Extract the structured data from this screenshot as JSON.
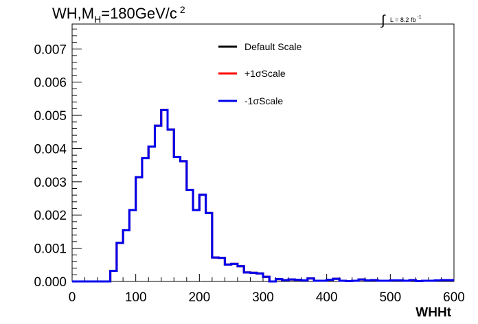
{
  "chart_data": {
    "type": "line",
    "title_main": "WH,M",
    "title_sub": "H",
    "title_rest": "=180GeV/c",
    "title_sup": "2",
    "lumi_label": "L = 8.2 fb",
    "lumi_sup": "-1",
    "xlabel": "WHHt",
    "ylabel": "",
    "xlim": [
      0,
      600
    ],
    "ylim": [
      0,
      0.00775
    ],
    "x_ticks": [
      "0",
      "100",
      "200",
      "300",
      "400",
      "500",
      "600"
    ],
    "x_tick_values": [
      0,
      100,
      200,
      300,
      400,
      500,
      600
    ],
    "y_ticks": [
      "0.000",
      "0.001",
      "0.002",
      "0.003",
      "0.004",
      "0.005",
      "0.006",
      "0.007"
    ],
    "y_tick_values": [
      0,
      0.001,
      0.002,
      0.003,
      0.004,
      0.005,
      0.006,
      0.007
    ],
    "bin_width": 10,
    "bin_edges_start": 0,
    "legend_position": "top-center",
    "series": [
      {
        "name": "Default Scale",
        "color": "#000000",
        "values": [
          0,
          0,
          0,
          0,
          0,
          0,
          0.00032,
          0.00116,
          0.00154,
          0.00215,
          0.00314,
          0.00371,
          0.00406,
          0.00469,
          0.00516,
          0.00457,
          0.00375,
          0.00362,
          0.00276,
          0.00215,
          0.00261,
          0.00206,
          0.00072,
          0.00071,
          0.00051,
          0.00053,
          0.00046,
          0.00027,
          0.00026,
          0.00024,
          0.00014,
          0,
          7e-05,
          4e-05,
          6e-05,
          5e-05,
          3e-05,
          9e-05,
          2e-05,
          2e-05,
          5e-05,
          8e-05,
          2e-05,
          1e-05,
          2e-05,
          6e-05,
          3e-05,
          4e-05,
          2e-05,
          2e-05,
          3e-05,
          3e-05,
          2e-05,
          4e-05,
          1e-05,
          2e-05,
          2e-05,
          3e-05,
          4e-05,
          4e-05
        ]
      },
      {
        "name": "+1σScale",
        "color": "#ff0000",
        "values": [
          0,
          0,
          0,
          0,
          0,
          0,
          0.00032,
          0.00116,
          0.00154,
          0.00215,
          0.00314,
          0.00371,
          0.00406,
          0.00469,
          0.00516,
          0.00457,
          0.00375,
          0.00362,
          0.00276,
          0.00215,
          0.00261,
          0.00206,
          0.00072,
          0.00071,
          0.00051,
          0.00053,
          0.00046,
          0.00027,
          0.00026,
          0.00024,
          0.00014,
          0,
          7e-05,
          4e-05,
          6e-05,
          5e-05,
          3e-05,
          9e-05,
          2e-05,
          2e-05,
          5e-05,
          8e-05,
          2e-05,
          1e-05,
          2e-05,
          6e-05,
          3e-05,
          4e-05,
          2e-05,
          2e-05,
          3e-05,
          3e-05,
          2e-05,
          4e-05,
          1e-05,
          2e-05,
          2e-05,
          3e-05,
          4e-05,
          4e-05
        ]
      },
      {
        "name": "-1σScale",
        "color": "#0000ee",
        "values": [
          0,
          0,
          0,
          0,
          0,
          0,
          0.00032,
          0.00116,
          0.00154,
          0.00215,
          0.00314,
          0.00371,
          0.00406,
          0.00469,
          0.00516,
          0.00457,
          0.00375,
          0.00362,
          0.00276,
          0.00215,
          0.00261,
          0.00206,
          0.00072,
          0.00071,
          0.00051,
          0.00053,
          0.00046,
          0.00027,
          0.00026,
          0.00024,
          0.00014,
          0,
          7e-05,
          4e-05,
          6e-05,
          5e-05,
          3e-05,
          9e-05,
          2e-05,
          2e-05,
          5e-05,
          8e-05,
          2e-05,
          1e-05,
          2e-05,
          6e-05,
          3e-05,
          4e-05,
          2e-05,
          2e-05,
          3e-05,
          3e-05,
          2e-05,
          4e-05,
          1e-05,
          2e-05,
          2e-05,
          3e-05,
          4e-05,
          4e-05
        ]
      }
    ]
  }
}
